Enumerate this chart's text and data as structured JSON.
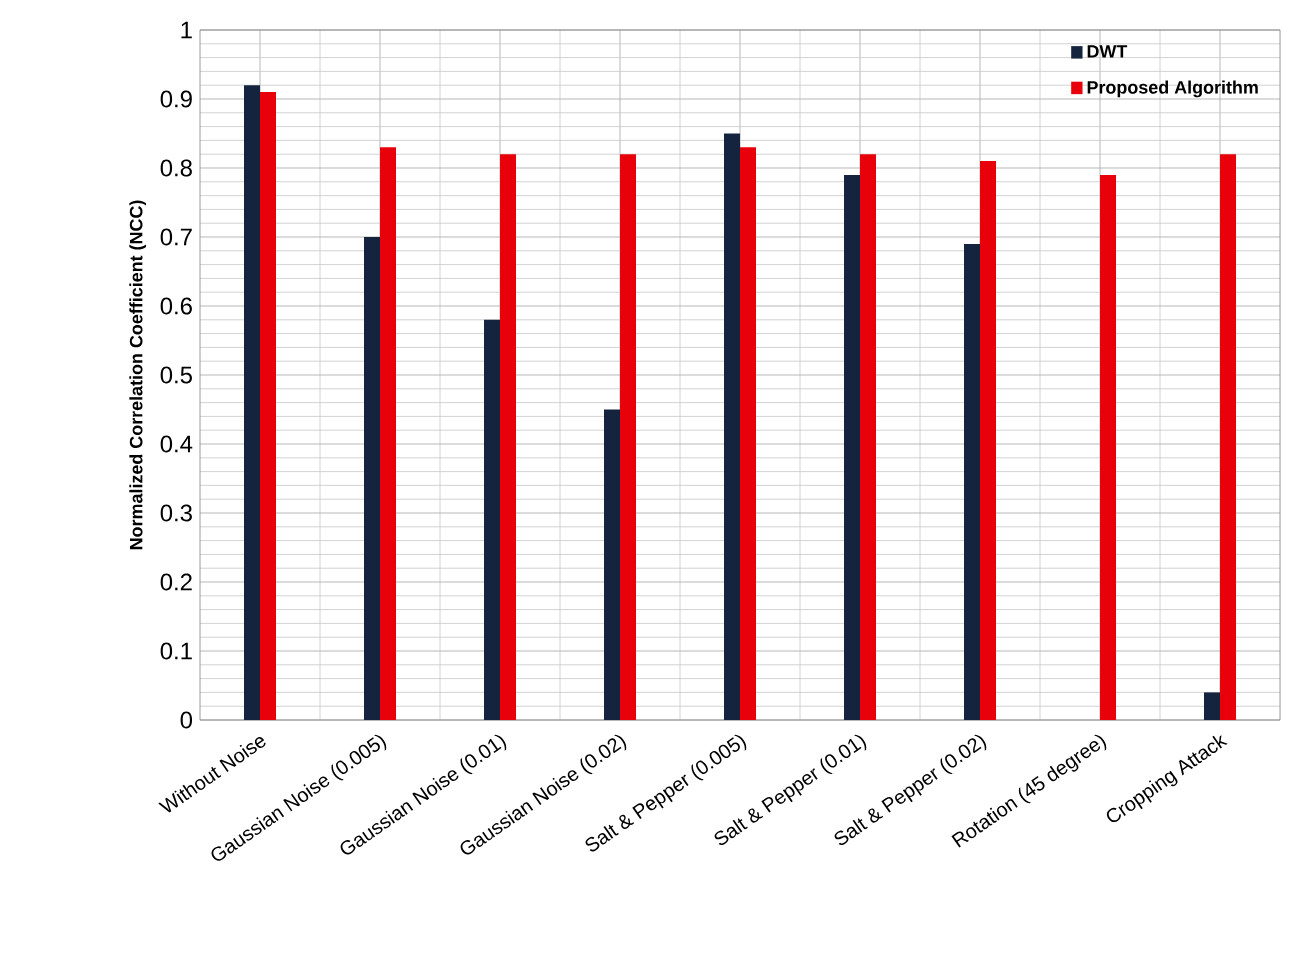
{
  "chart_data": {
    "type": "bar",
    "ylabel": "Normalized Correlation Coefficient (NCC)",
    "categories": [
      "Without Noise",
      "Gaussian Noise (0.005)",
      "Gaussian Noise (0.01)",
      "Gaussian Noise (0.02)",
      "Salt & Pepper (0.005)",
      "Salt & Pepper (0.01)",
      "Salt & Pepper (0.02)",
      "Rotation (45 degree)",
      "Cropping Attack"
    ],
    "series": [
      {
        "name": "DWT",
        "color": "#14243f",
        "values": [
          0.92,
          0.7,
          0.58,
          0.45,
          0.85,
          0.79,
          0.69,
          null,
          0.04
        ]
      },
      {
        "name": "Proposed Algorithm",
        "color": "#e8000b",
        "values": [
          0.91,
          0.83,
          0.82,
          0.82,
          0.83,
          0.82,
          0.81,
          0.79,
          0.82
        ]
      }
    ],
    "ylim": [
      0,
      1
    ],
    "yticks": [
      0,
      0.1,
      0.2,
      0.3,
      0.4,
      0.5,
      0.6,
      0.7,
      0.8,
      0.9,
      1
    ],
    "grid": true,
    "legend": "top right"
  }
}
